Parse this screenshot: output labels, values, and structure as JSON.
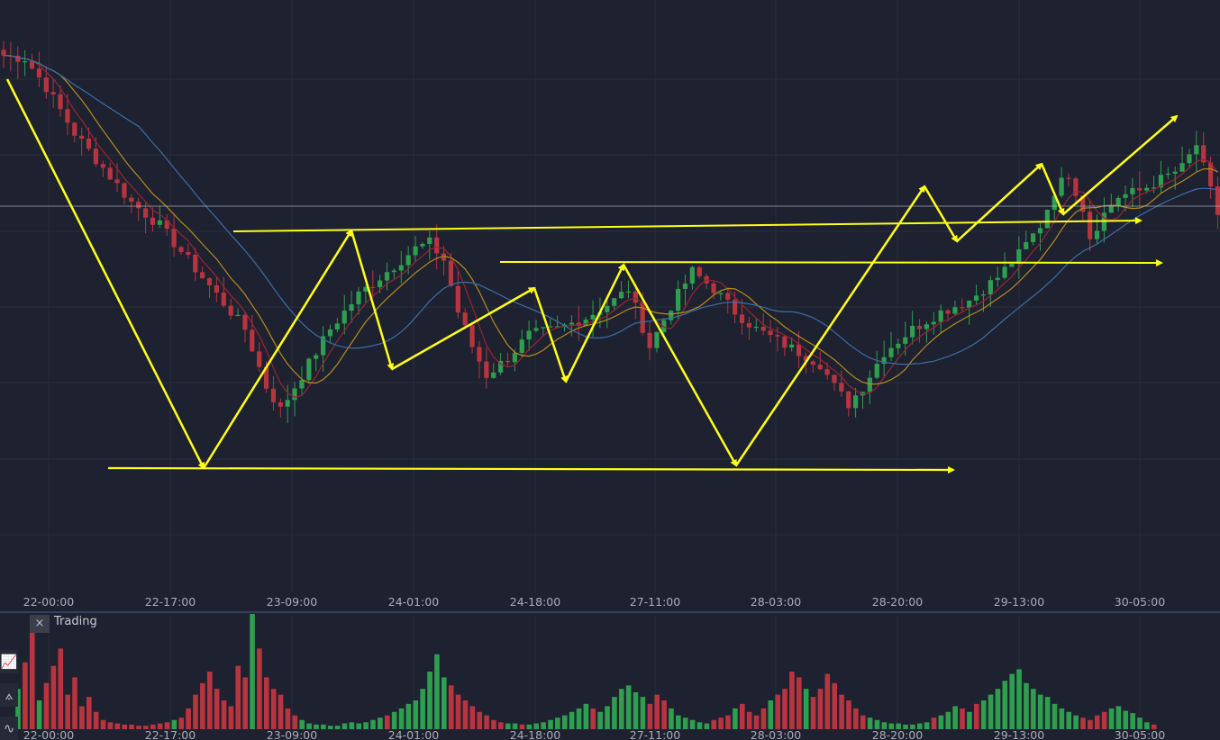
{
  "chart_data": {
    "type": "candlestick",
    "title": "",
    "x_tick_labels": [
      "22-00:00",
      "22-17:00",
      "23-09:00",
      "24-01:00",
      "24-18:00",
      "27-11:00",
      "28-03:00",
      "28-20:00",
      "29-13:00",
      "30-05:00"
    ],
    "volume_tick_labels": [
      "22-00:00",
      "22-17:00",
      "23-09:00",
      "24-01:00",
      "24-18:00",
      "27-11:00",
      "28-03:00",
      "28-20:00",
      "29-13:00",
      "30-05:00"
    ],
    "grid": true,
    "price_path": [
      [
        0,
        0.935
      ],
      [
        3,
        0.93
      ],
      [
        6,
        0.88
      ],
      [
        10,
        0.8
      ],
      [
        14,
        0.74
      ],
      [
        18,
        0.68
      ],
      [
        22,
        0.64
      ],
      [
        26,
        0.58
      ],
      [
        30,
        0.52
      ],
      [
        34,
        0.46
      ],
      [
        37,
        0.36
      ],
      [
        39,
        0.32
      ],
      [
        42,
        0.38
      ],
      [
        46,
        0.46
      ],
      [
        50,
        0.52
      ],
      [
        54,
        0.56
      ],
      [
        58,
        0.6
      ],
      [
        60,
        0.61
      ],
      [
        62,
        0.58
      ],
      [
        64,
        0.49
      ],
      [
        66,
        0.43
      ],
      [
        68,
        0.38
      ],
      [
        71,
        0.41
      ],
      [
        74,
        0.45
      ],
      [
        78,
        0.46
      ],
      [
        82,
        0.48
      ],
      [
        86,
        0.51
      ],
      [
        88,
        0.53
      ],
      [
        91,
        0.43
      ],
      [
        94,
        0.5
      ],
      [
        97,
        0.56
      ],
      [
        100,
        0.53
      ],
      [
        103,
        0.49
      ],
      [
        106,
        0.46
      ],
      [
        109,
        0.44
      ],
      [
        112,
        0.42
      ],
      [
        115,
        0.4
      ],
      [
        117,
        0.36
      ],
      [
        119,
        0.33
      ],
      [
        121,
        0.36
      ],
      [
        124,
        0.42
      ],
      [
        128,
        0.46
      ],
      [
        132,
        0.49
      ],
      [
        136,
        0.51
      ],
      [
        140,
        0.55
      ],
      [
        143,
        0.59
      ],
      [
        146,
        0.64
      ],
      [
        148,
        0.7
      ],
      [
        150,
        0.73
      ],
      [
        152,
        0.67
      ],
      [
        153,
        0.62
      ],
      [
        155,
        0.66
      ],
      [
        157,
        0.69
      ],
      [
        160,
        0.7
      ],
      [
        163,
        0.72
      ],
      [
        166,
        0.74
      ],
      [
        168,
        0.78
      ],
      [
        169,
        0.74
      ],
      [
        171,
        0.66
      ]
    ],
    "volume": [
      0.35,
      0.58,
      0.85,
      0.25,
      0.4,
      0.55,
      0.7,
      0.3,
      0.45,
      0.2,
      0.28,
      0.15,
      0.08,
      0.06,
      0.05,
      0.04,
      0.04,
      0.03,
      0.03,
      0.04,
      0.05,
      0.06,
      0.08,
      0.1,
      0.18,
      0.3,
      0.4,
      0.5,
      0.35,
      0.25,
      0.2,
      0.55,
      0.45,
      1.0,
      0.7,
      0.45,
      0.35,
      0.3,
      0.18,
      0.12,
      0.08,
      0.05,
      0.04,
      0.04,
      0.03,
      0.03,
      0.05,
      0.06,
      0.05,
      0.06,
      0.08,
      0.1,
      0.12,
      0.15,
      0.18,
      0.22,
      0.25,
      0.35,
      0.5,
      0.65,
      0.45,
      0.38,
      0.3,
      0.25,
      0.2,
      0.15,
      0.12,
      0.08,
      0.06,
      0.05,
      0.05,
      0.04,
      0.04,
      0.05,
      0.06,
      0.08,
      0.1,
      0.12,
      0.15,
      0.18,
      0.22,
      0.18,
      0.15,
      0.2,
      0.28,
      0.35,
      0.38,
      0.32,
      0.28,
      0.22,
      0.3,
      0.25,
      0.18,
      0.12,
      0.1,
      0.08,
      0.06,
      0.05,
      0.08,
      0.1,
      0.12,
      0.18,
      0.22,
      0.15,
      0.12,
      0.18,
      0.25,
      0.3,
      0.35,
      0.5,
      0.45,
      0.35,
      0.28,
      0.35,
      0.48,
      0.4,
      0.3,
      0.25,
      0.18,
      0.12,
      0.1,
      0.08,
      0.06,
      0.05,
      0.05,
      0.04,
      0.04,
      0.05,
      0.06,
      0.1,
      0.12,
      0.15,
      0.2,
      0.18,
      0.15,
      0.22,
      0.25,
      0.3,
      0.35,
      0.42,
      0.48,
      0.52,
      0.4,
      0.35,
      0.3,
      0.28,
      0.22,
      0.18,
      0.15,
      0.12,
      0.1,
      0.08,
      0.12,
      0.15,
      0.18,
      0.2,
      0.16,
      0.14,
      0.1,
      0.06,
      0.04
    ]
  },
  "indicator_panel": {
    "title": "Trading",
    "close_label": "×"
  },
  "toolbar": {
    "tools": [
      {
        "icon": "indicator-chart-icon",
        "glyph": "📈"
      },
      {
        "icon": "drawing-compass-icon",
        "glyph": "⟑"
      },
      {
        "icon": "wave-icon",
        "glyph": "∿"
      }
    ]
  },
  "colors": {
    "background": "#1e2230",
    "grid": "#2a2f3d",
    "up_candle": "#2e9e4f",
    "down_candle": "#b8343f",
    "ma_fast": "#9c2232",
    "ma_mid": "#b88a1c",
    "ma_slow": "#3a6ea8",
    "annotation": "#ffff1a",
    "price_line": "#c7cad3"
  }
}
